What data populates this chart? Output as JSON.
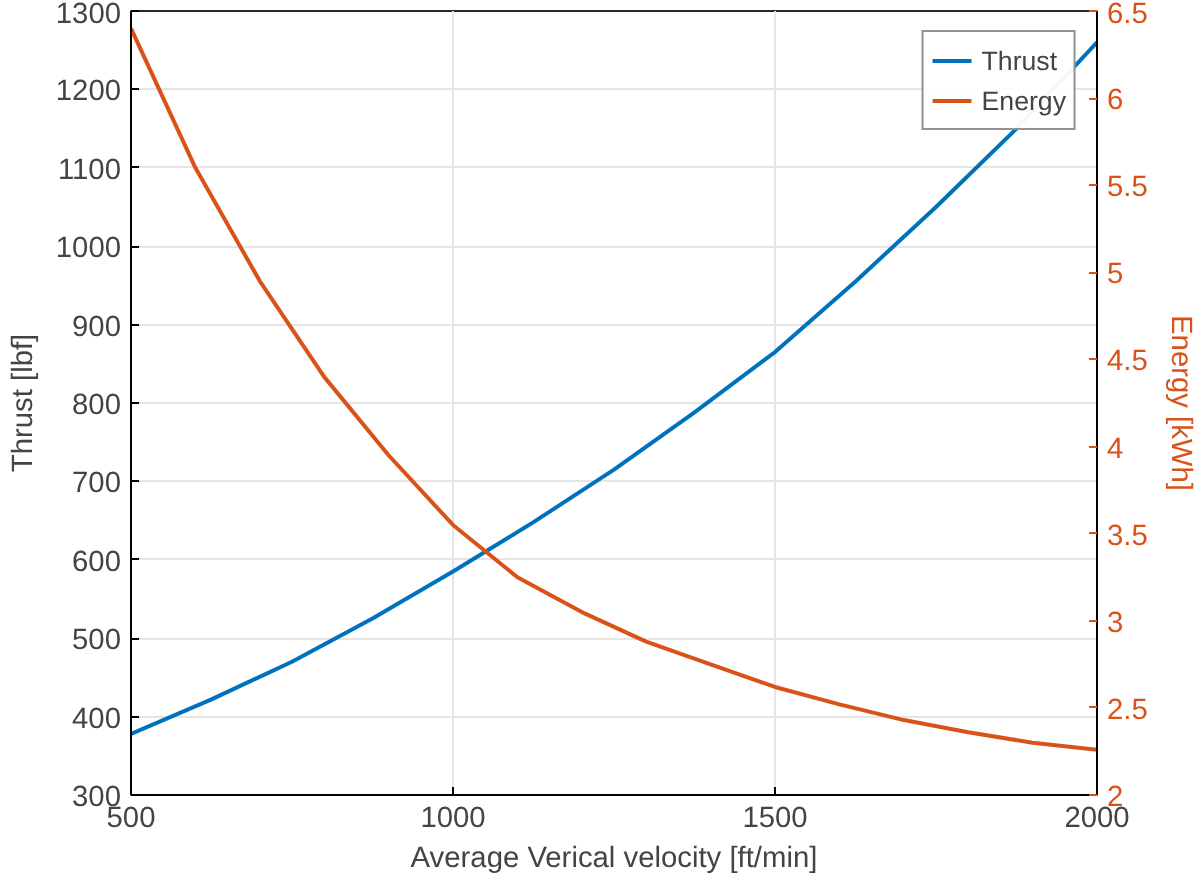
{
  "chart_data": {
    "type": "line",
    "xlabel": "Average Verical velocity [ft/min]",
    "ylabel": "Thrust [lbf]",
    "y2label": "Energy [kWh]",
    "xlim": [
      500,
      2000
    ],
    "xticks": [
      500,
      1000,
      1500,
      2000
    ],
    "ylim": [
      300,
      1300
    ],
    "yticks": [
      300,
      400,
      500,
      600,
      700,
      800,
      900,
      1000,
      1100,
      1200,
      1300
    ],
    "y2lim": [
      2,
      6.5
    ],
    "y2ticks": [
      2,
      2.5,
      3,
      3.5,
      4,
      4.5,
      5,
      5.5,
      6,
      6.5
    ],
    "grid": true,
    "legend": "top right",
    "line_style": "solid",
    "series": [
      {
        "name": "Thrust",
        "color": "#0072bd",
        "x": [
          500,
          625,
          750,
          875,
          1000,
          1125,
          1250,
          1375,
          1500,
          1625,
          1750,
          1875,
          2000
        ],
        "values": [
          378,
          422,
          470,
          525,
          585,
          648,
          715,
          788,
          865,
          955,
          1050,
          1150,
          1260
        ]
      },
      {
        "name": "Energy",
        "color": "#d95319",
        "axis": "y2",
        "x": [
          500,
          600,
          700,
          800,
          900,
          1000,
          1100,
          1200,
          1300,
          1400,
          1500,
          1600,
          1700,
          1800,
          1900,
          2000
        ],
        "values": [
          6.4,
          5.6,
          4.95,
          4.4,
          3.95,
          3.55,
          3.25,
          3.05,
          2.88,
          2.75,
          2.62,
          2.52,
          2.43,
          2.36,
          2.3,
          2.26
        ]
      }
    ]
  }
}
